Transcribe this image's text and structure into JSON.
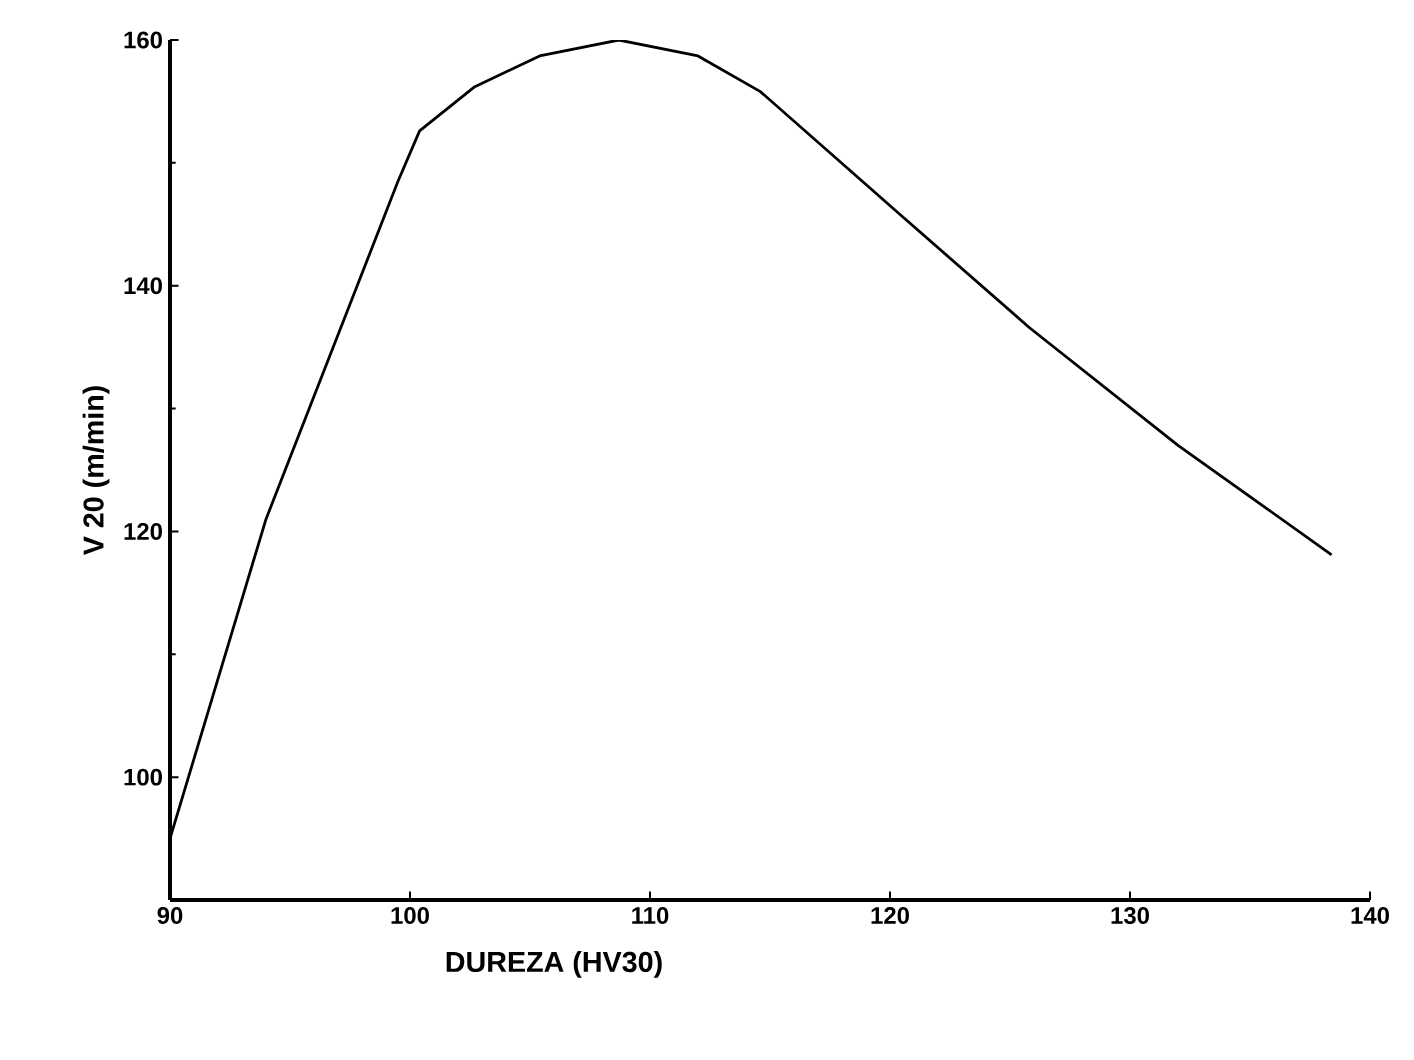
{
  "chart_data": {
    "type": "line",
    "xlabel": "DUREZA (HV30)",
    "ylabel": "V 20 (m/min)",
    "series": [
      {
        "color": "#000000",
        "x": [
          90,
          94,
          99.5,
          100.4,
          102.7,
          105.4,
          108.7,
          112.0,
          114.6,
          120.3,
          125.8,
          132,
          138.4
        ],
        "values": [
          95,
          121,
          148.5,
          152.6,
          156.2,
          158.7,
          160,
          158.7,
          155.8,
          146.0,
          136.6,
          127,
          118.1
        ]
      }
    ],
    "xlim": [
      90,
      140
    ],
    "ylim": [
      90,
      160
    ],
    "xticks": [
      90,
      100,
      110,
      120,
      130,
      140
    ],
    "yticks": [
      100,
      120,
      140,
      160
    ],
    "grid": false,
    "marker": "none",
    "line_style": "solid"
  }
}
